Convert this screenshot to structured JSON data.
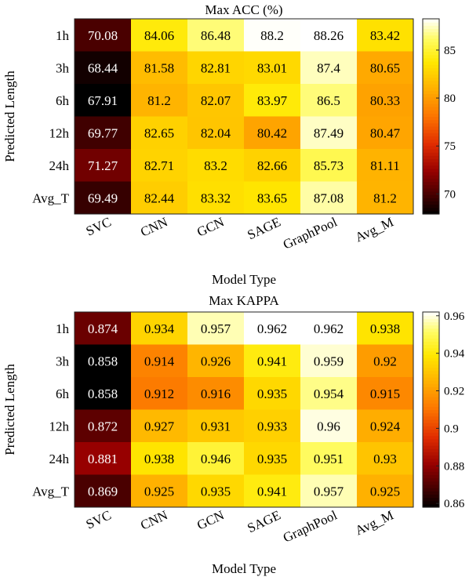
{
  "chart_data": [
    {
      "type": "heatmap",
      "title": "Max ACC (%)",
      "xlabel": "Model Type",
      "ylabel": "Predicted Length",
      "x_categories": [
        "SVC",
        "CNN",
        "GCN",
        "SAGE",
        "GraphPool",
        "Avg_M"
      ],
      "y_categories": [
        "1h",
        "3h",
        "6h",
        "12h",
        "24h",
        "Avg_T"
      ],
      "values": [
        [
          "70.08",
          "84.06",
          "86.48",
          "88.2",
          "88.26",
          "83.42"
        ],
        [
          "68.44",
          "81.58",
          "82.81",
          "83.01",
          "87.4",
          "80.65"
        ],
        [
          "67.91",
          "81.2",
          "82.07",
          "83.97",
          "86.5",
          "80.33"
        ],
        [
          "69.77",
          "82.65",
          "82.04",
          "80.42",
          "87.49",
          "80.47"
        ],
        [
          "71.27",
          "82.71",
          "83.2",
          "82.66",
          "85.73",
          "81.11"
        ],
        [
          "69.49",
          "82.44",
          "83.32",
          "83.65",
          "87.08",
          "81.2"
        ]
      ],
      "colorbar": {
        "ticks": [
          "70",
          "75",
          "80",
          "85"
        ],
        "range": [
          67.91,
          88.26
        ],
        "colormap": "hot"
      }
    },
    {
      "type": "heatmap",
      "title": "Max KAPPA",
      "xlabel": "Model Type",
      "ylabel": "Predicted Length",
      "x_categories": [
        "SVC",
        "CNN",
        "GCN",
        "SAGE",
        "GraphPool",
        "Avg_M"
      ],
      "y_categories": [
        "1h",
        "3h",
        "6h",
        "12h",
        "24h",
        "Avg_T"
      ],
      "values": [
        [
          "0.874",
          "0.934",
          "0.957",
          "0.962",
          "0.962",
          "0.938"
        ],
        [
          "0.858",
          "0.914",
          "0.926",
          "0.941",
          "0.959",
          "0.92"
        ],
        [
          "0.858",
          "0.912",
          "0.916",
          "0.935",
          "0.954",
          "0.915"
        ],
        [
          "0.872",
          "0.927",
          "0.931",
          "0.933",
          "0.96",
          "0.924"
        ],
        [
          "0.881",
          "0.938",
          "0.946",
          "0.935",
          "0.951",
          "0.93"
        ],
        [
          "0.869",
          "0.925",
          "0.935",
          "0.941",
          "0.957",
          "0.925"
        ]
      ],
      "colorbar": {
        "ticks": [
          "0.86",
          "0.88",
          "0.9",
          "0.92",
          "0.94",
          "0.96"
        ],
        "range": [
          0.858,
          0.962
        ],
        "colormap": "hot"
      }
    }
  ]
}
